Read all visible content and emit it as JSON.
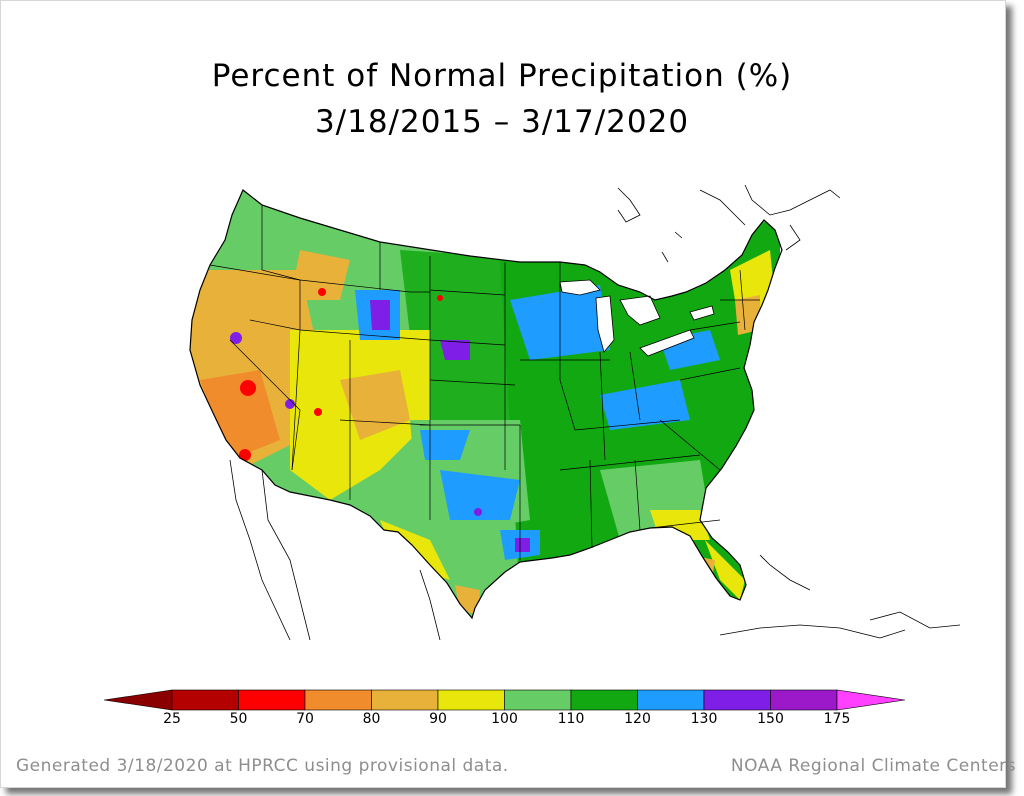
{
  "title": {
    "line1": "Percent of Normal Precipitation (%)",
    "line2": "3/18/2015 – 3/17/2020"
  },
  "legend": {
    "ticks": [
      "25",
      "50",
      "70",
      "80",
      "90",
      "100",
      "110",
      "120",
      "130",
      "150",
      "175"
    ],
    "colors": [
      "#b30000",
      "#ff0000",
      "#f08c2c",
      "#e8b13a",
      "#e8e60a",
      "#66cc66",
      "#12a812",
      "#1e9cff",
      "#7f1ee6",
      "#9b19c9"
    ],
    "low_arrow_color": "#8a0000",
    "high_arrow_color": "#ff40ff"
  },
  "footer": {
    "left": "Generated 3/18/2020 at HPRCC using provisional data.",
    "right": "NOAA Regional Climate Centers"
  },
  "map_colors": {
    "dry_extreme": "#ff0000",
    "dry_orange": "#f08c2c",
    "dry_tan": "#e8b13a",
    "near_yellow": "#e8e60a",
    "normal_lightgreen": "#66cc66",
    "wet_green": "#12a812",
    "wet_blue": "#1e9cff",
    "very_wet_purple": "#7f1ee6",
    "water": "#ffffff",
    "border": "#000000"
  }
}
